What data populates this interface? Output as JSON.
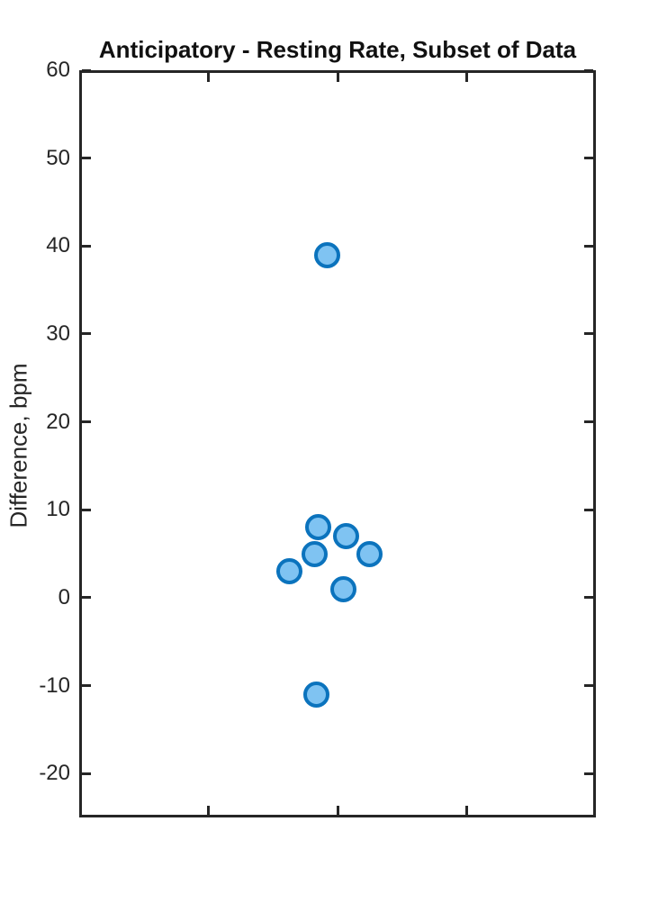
{
  "chart_data": {
    "type": "scatter",
    "title": "Anticipatory - Resting Rate, Subset of Data",
    "xlabel": "",
    "ylabel": "Difference, bpm",
    "xlim": [
      0,
      2
    ],
    "ylim": [
      -25,
      60
    ],
    "yticks": [
      -20,
      -10,
      0,
      10,
      20,
      30,
      40,
      50,
      60
    ],
    "xticks": [
      0.5,
      1,
      1.5
    ],
    "xtick_labels": [],
    "grid": false,
    "legend": null,
    "axis_color": "#262626",
    "marker": {
      "shape": "circle",
      "edge_color": "#0b73bd",
      "face_color": "#7fc3f2"
    },
    "points": [
      {
        "x": 0.961,
        "y": 39
      },
      {
        "x": 0.924,
        "y": 8
      },
      {
        "x": 1.032,
        "y": 7
      },
      {
        "x": 0.91,
        "y": 5
      },
      {
        "x": 1.125,
        "y": 5
      },
      {
        "x": 0.812,
        "y": 3
      },
      {
        "x": 1.021,
        "y": 1
      },
      {
        "x": 0.919,
        "y": -11
      }
    ],
    "y_values_summary": [
      39,
      8,
      7,
      5,
      5,
      3,
      1,
      -11
    ]
  }
}
